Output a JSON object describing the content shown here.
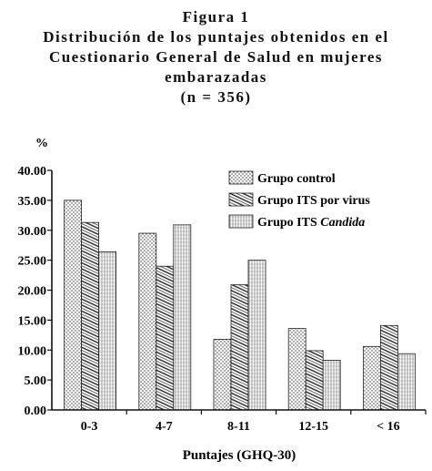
{
  "figure": {
    "label": "Figura 1",
    "title_lines": [
      "Distribución de los puntajes obtenidos en el",
      "Cuestionario General de Salud en mujeres",
      "embarazadas",
      "(n = 356)"
    ]
  },
  "chart_data": {
    "type": "bar",
    "categories": [
      "0-3",
      "4-7",
      "8-11",
      "12-15",
      "< 16"
    ],
    "series": [
      {
        "name": "Grupo control",
        "values": [
          35.0,
          29.5,
          11.8,
          13.6,
          10.6
        ],
        "pattern": "dots"
      },
      {
        "name": "Grupo ITS por virus",
        "values": [
          31.3,
          24.0,
          20.9,
          9.9,
          14.1
        ],
        "pattern": "diagonal"
      },
      {
        "name": "Grupo ITS Candida",
        "values": [
          26.4,
          30.9,
          25.0,
          8.3,
          9.4
        ],
        "pattern": "vertical"
      }
    ],
    "legend_parts": [
      {
        "prefix": "Grupo control",
        "italic": ""
      },
      {
        "prefix": "Grupo ITS por virus",
        "italic": ""
      },
      {
        "prefix": "Grupo ITS ",
        "italic": "Candida"
      }
    ],
    "ylabel": "%",
    "xlabel": "Puntajes (GHQ-30)",
    "ylim": [
      0,
      40
    ],
    "yticks": [
      "0.00",
      "5.00",
      "10.00",
      "15.00",
      "20.00",
      "25.00",
      "30.00",
      "35.00",
      "40.00"
    ],
    "ytick_values": [
      0,
      5,
      10,
      15,
      20,
      25,
      30,
      35,
      40
    ],
    "grid": false,
    "legend_position": "top-right"
  }
}
